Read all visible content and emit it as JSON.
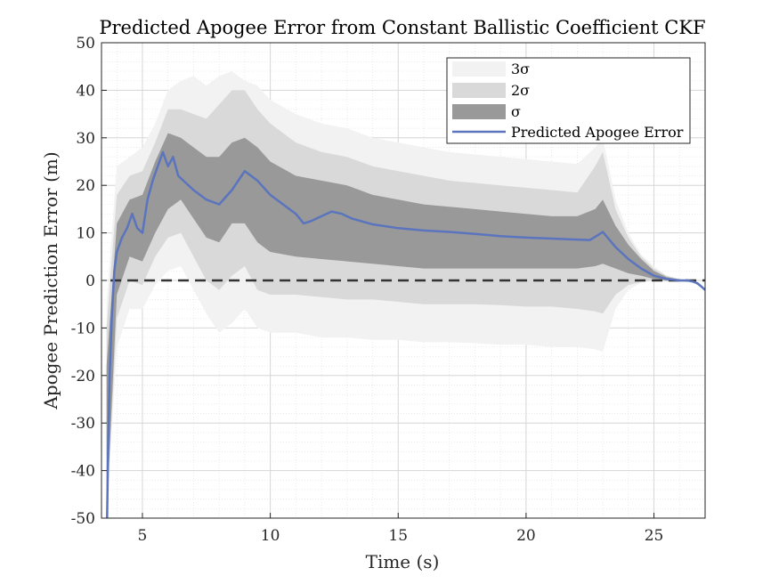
{
  "chart_data": {
    "type": "area",
    "title": "Predicted Apogee Error from Constant Ballistic Coefficient CKF",
    "xlabel": "Time (s)",
    "ylabel": "Apogee Prediction Error (m)",
    "xlim": [
      3.4,
      27.0
    ],
    "ylim": [
      -50,
      50
    ],
    "xticks": [
      5,
      10,
      15,
      20,
      25
    ],
    "yticks": [
      -50,
      -40,
      -30,
      -20,
      -10,
      0,
      10,
      20,
      30,
      40,
      50
    ],
    "grid": true,
    "minor_grid": true,
    "legend_position": "top-right",
    "reference_line": {
      "y": 0,
      "style": "dashed",
      "color": "#333333"
    },
    "series": [
      {
        "name": "Predicted Apogee Error",
        "role": "line",
        "color": "#5b74be",
        "x": [
          3.62,
          3.66,
          3.72,
          3.8,
          3.9,
          4.0,
          4.2,
          4.4,
          4.6,
          4.8,
          5.0,
          5.2,
          5.4,
          5.6,
          5.8,
          6.0,
          6.2,
          6.4,
          6.6,
          6.8,
          7.0,
          7.5,
          8.0,
          8.5,
          9.0,
          9.5,
          10.0,
          10.5,
          11.0,
          11.3,
          11.6,
          12.0,
          12.4,
          12.8,
          13.2,
          14.0,
          15.0,
          16.0,
          17.0,
          18.0,
          19.0,
          20.0,
          21.0,
          22.0,
          22.5,
          22.8,
          23.0,
          23.5,
          24.0,
          24.5,
          25.0,
          25.5,
          26.0,
          26.3,
          26.5,
          26.7,
          26.9,
          27.0
        ],
        "y": [
          -50,
          -35,
          -20,
          -8,
          2,
          6,
          9,
          11,
          14,
          11,
          10,
          17,
          21,
          24,
          27,
          24,
          26,
          22,
          21,
          20,
          19,
          17,
          16,
          19,
          23,
          21,
          18,
          16,
          14,
          12,
          12.5,
          13.5,
          14.5,
          14,
          13,
          11.8,
          11,
          10.5,
          10.2,
          9.8,
          9.3,
          9.0,
          8.8,
          8.6,
          8.5,
          9.5,
          10.2,
          7,
          4.5,
          2.5,
          1,
          0.3,
          0,
          0,
          -0.2,
          -0.6,
          -1.5,
          -2
        ]
      },
      {
        "name": "σ",
        "role": "band",
        "color": "#999999",
        "x": [
          3.6,
          4.0,
          4.5,
          5.0,
          5.5,
          6.0,
          6.5,
          7.0,
          7.5,
          8.0,
          8.5,
          9.0,
          9.5,
          10.0,
          11.0,
          12.0,
          13.0,
          14.0,
          15.0,
          16.0,
          17.0,
          18.0,
          19.0,
          20.0,
          21.0,
          22.0,
          22.7,
          23.0,
          23.5,
          24.0,
          24.5,
          25.0,
          25.5,
          26.0,
          26.5,
          27.0
        ],
        "upper": [
          -18,
          12,
          17,
          18,
          25,
          31,
          30,
          28,
          26,
          26,
          29,
          30,
          28,
          25,
          22,
          21,
          20,
          18,
          17,
          16,
          15.5,
          15,
          14.5,
          14,
          13.5,
          13.5,
          15,
          17,
          11.5,
          7.5,
          4.5,
          2,
          0.7,
          0.2,
          0,
          -2
        ],
        "lower": [
          -50,
          -3,
          5,
          4,
          10,
          15,
          17,
          13,
          9,
          8,
          12,
          12,
          8,
          6,
          5,
          4.5,
          4,
          3.5,
          3,
          2.5,
          2.5,
          2.5,
          2.5,
          2.5,
          2.5,
          2.5,
          3,
          3.5,
          2.5,
          1.5,
          1,
          0.3,
          0,
          -0.2,
          -0.2,
          -2
        ]
      },
      {
        "name": "2σ",
        "role": "band",
        "color": "#d9d9d9",
        "x": [
          3.6,
          4.0,
          4.5,
          5.0,
          5.5,
          6.0,
          6.5,
          7.0,
          7.5,
          8.0,
          8.5,
          9.0,
          9.5,
          10.0,
          11.0,
          12.0,
          13.0,
          14.0,
          15.0,
          16.0,
          17.0,
          18.0,
          19.0,
          20.0,
          21.0,
          22.0,
          22.7,
          23.0,
          23.5,
          24.0,
          24.5,
          25.0,
          25.5,
          26.0,
          26.5,
          27.0
        ],
        "upper": [
          -10,
          18,
          22,
          23,
          29,
          36,
          36,
          35,
          34,
          37,
          40,
          40,
          36,
          33,
          29,
          27,
          26,
          24,
          23,
          22,
          21,
          20.5,
          20,
          19.5,
          19,
          18.5,
          24,
          27,
          15,
          9,
          5,
          2.5,
          1,
          0.3,
          0,
          -2
        ],
        "lower": [
          -50,
          -8,
          0,
          -1,
          5,
          9,
          10,
          5,
          0,
          -2,
          1,
          3,
          -2,
          -3,
          -3,
          -3.5,
          -4,
          -4,
          -4.5,
          -5,
          -5,
          -5,
          -5.2,
          -5.5,
          -5.5,
          -6,
          -6.5,
          -7,
          -3,
          -1,
          -0.3,
          0,
          -0.2,
          -0.3,
          -0.2,
          -2
        ]
      },
      {
        "name": "3σ",
        "role": "band",
        "color": "#f2f2f2",
        "x": [
          3.6,
          4.0,
          4.5,
          5.0,
          5.5,
          6.0,
          6.5,
          7.0,
          7.5,
          8.0,
          8.5,
          9.0,
          9.5,
          10.0,
          11.0,
          12.0,
          13.0,
          14.0,
          15.0,
          16.0,
          17.0,
          18.0,
          19.0,
          20.0,
          21.0,
          22.0,
          22.7,
          23.0,
          23.5,
          24.0,
          24.5,
          25.0,
          25.5,
          26.0,
          26.5,
          27.0
        ],
        "upper": [
          -5,
          24,
          26,
          28,
          33,
          40,
          42,
          43,
          41,
          43,
          44,
          42,
          41,
          38,
          35,
          33,
          32,
          30,
          29,
          28,
          27,
          26.5,
          26,
          25.5,
          25,
          24.5,
          28,
          30,
          17,
          10,
          5.5,
          3,
          1,
          0.3,
          0,
          -2
        ],
        "lower": [
          -50,
          -14,
          -6,
          -6,
          -1,
          2,
          3,
          -2,
          -7,
          -11,
          -9,
          -6,
          -10,
          -11,
          -11,
          -12,
          -12,
          -12.5,
          -12.5,
          -13,
          -13,
          -13.2,
          -13.5,
          -13.5,
          -14,
          -14,
          -14.5,
          -15,
          -6,
          -2,
          -0.5,
          0,
          -0.3,
          -0.4,
          -0.3,
          -2
        ]
      }
    ],
    "legend": [
      "3σ",
      "2σ",
      "σ",
      "Predicted Apogee Error"
    ]
  }
}
